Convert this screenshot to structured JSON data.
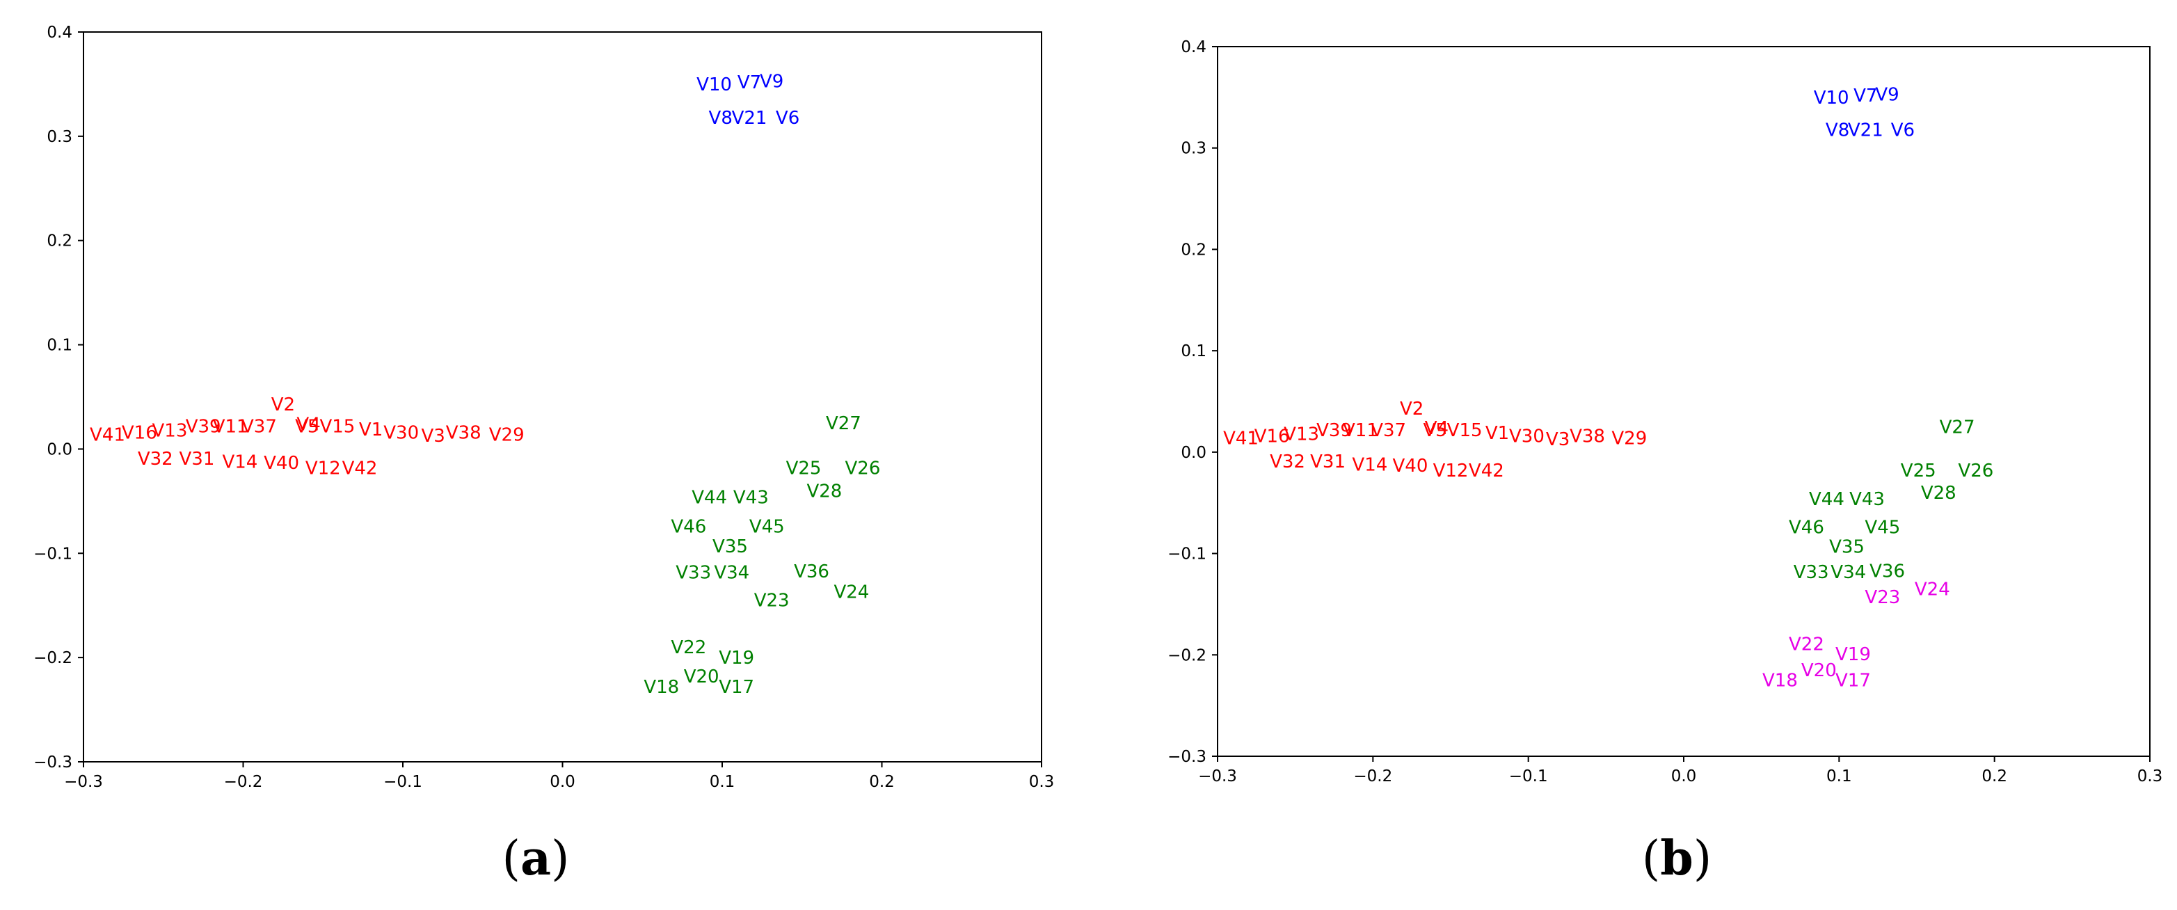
{
  "colors": {
    "red": "#ff0000",
    "blue": "#0000ff",
    "green": "#008000",
    "magenta": "#e600e6"
  },
  "chart_data": [
    {
      "type": "scatter",
      "title": "",
      "xlabel": "",
      "ylabel": "",
      "xlim": [
        -0.3,
        0.3
      ],
      "ylim": [
        -0.3,
        0.4
      ],
      "grid": false,
      "caption_letter": "a",
      "x_ticks": [
        "−0.3",
        "−0.2",
        "−0.1",
        "0.0",
        "0.1",
        "0.2",
        "0.3"
      ],
      "y_ticks": [
        "−0.3",
        "−0.2",
        "−0.1",
        "0.0",
        "0.1",
        "0.2",
        "0.3",
        "0.4"
      ],
      "points": [
        {
          "label": "V10",
          "x": 0.095,
          "y": 0.35,
          "color": "blue"
        },
        {
          "label": "V7",
          "x": 0.117,
          "y": 0.352,
          "color": "blue"
        },
        {
          "label": "V9",
          "x": 0.131,
          "y": 0.353,
          "color": "blue"
        },
        {
          "label": "V8",
          "x": 0.099,
          "y": 0.318,
          "color": "blue"
        },
        {
          "label": "V21",
          "x": 0.117,
          "y": 0.318,
          "color": "blue"
        },
        {
          "label": "V6",
          "x": 0.141,
          "y": 0.318,
          "color": "blue"
        },
        {
          "label": "V2",
          "x": -0.175,
          "y": 0.043,
          "color": "red"
        },
        {
          "label": "V41",
          "x": -0.285,
          "y": 0.014,
          "color": "red"
        },
        {
          "label": "V16",
          "x": -0.265,
          "y": 0.016,
          "color": "red"
        },
        {
          "label": "V13",
          "x": -0.246,
          "y": 0.018,
          "color": "red"
        },
        {
          "label": "V39",
          "x": -0.225,
          "y": 0.022,
          "color": "red"
        },
        {
          "label": "V11",
          "x": -0.208,
          "y": 0.022,
          "color": "red"
        },
        {
          "label": "V37",
          "x": -0.19,
          "y": 0.022,
          "color": "red"
        },
        {
          "label": "V5",
          "x": -0.16,
          "y": 0.022,
          "color": "red"
        },
        {
          "label": "V4",
          "x": -0.159,
          "y": 0.024,
          "color": "red"
        },
        {
          "label": "V15",
          "x": -0.141,
          "y": 0.022,
          "color": "red"
        },
        {
          "label": "V1",
          "x": -0.12,
          "y": 0.019,
          "color": "red"
        },
        {
          "label": "V30",
          "x": -0.101,
          "y": 0.016,
          "color": "red"
        },
        {
          "label": "V3",
          "x": -0.081,
          "y": 0.013,
          "color": "red"
        },
        {
          "label": "V38",
          "x": -0.062,
          "y": 0.016,
          "color": "red"
        },
        {
          "label": "V29",
          "x": -0.035,
          "y": 0.014,
          "color": "red"
        },
        {
          "label": "V32",
          "x": -0.255,
          "y": -0.009,
          "color": "red"
        },
        {
          "label": "V31",
          "x": -0.229,
          "y": -0.009,
          "color": "red"
        },
        {
          "label": "V14",
          "x": -0.202,
          "y": -0.012,
          "color": "red"
        },
        {
          "label": "V40",
          "x": -0.176,
          "y": -0.013,
          "color": "red"
        },
        {
          "label": "V12",
          "x": -0.15,
          "y": -0.018,
          "color": "red"
        },
        {
          "label": "V42",
          "x": -0.127,
          "y": -0.018,
          "color": "red"
        },
        {
          "label": "V27",
          "x": 0.176,
          "y": 0.025,
          "color": "green"
        },
        {
          "label": "V25",
          "x": 0.151,
          "y": -0.018,
          "color": "green"
        },
        {
          "label": "V26",
          "x": 0.188,
          "y": -0.018,
          "color": "green"
        },
        {
          "label": "V28",
          "x": 0.164,
          "y": -0.04,
          "color": "green"
        },
        {
          "label": "V44",
          "x": 0.092,
          "y": -0.046,
          "color": "green"
        },
        {
          "label": "V43",
          "x": 0.118,
          "y": -0.046,
          "color": "green"
        },
        {
          "label": "V46",
          "x": 0.079,
          "y": -0.074,
          "color": "green"
        },
        {
          "label": "V45",
          "x": 0.128,
          "y": -0.074,
          "color": "green"
        },
        {
          "label": "V35",
          "x": 0.105,
          "y": -0.093,
          "color": "green"
        },
        {
          "label": "V33",
          "x": 0.082,
          "y": -0.118,
          "color": "green"
        },
        {
          "label": "V34",
          "x": 0.106,
          "y": -0.118,
          "color": "green"
        },
        {
          "label": "V36",
          "x": 0.156,
          "y": -0.117,
          "color": "green"
        },
        {
          "label": "V24",
          "x": 0.181,
          "y": -0.137,
          "color": "green"
        },
        {
          "label": "V23",
          "x": 0.131,
          "y": -0.145,
          "color": "green"
        },
        {
          "label": "V22",
          "x": 0.079,
          "y": -0.19,
          "color": "green"
        },
        {
          "label": "V19",
          "x": 0.109,
          "y": -0.2,
          "color": "green"
        },
        {
          "label": "V20",
          "x": 0.087,
          "y": -0.218,
          "color": "green"
        },
        {
          "label": "V18",
          "x": 0.062,
          "y": -0.228,
          "color": "green"
        },
        {
          "label": "V17",
          "x": 0.109,
          "y": -0.228,
          "color": "green"
        }
      ]
    },
    {
      "type": "scatter",
      "title": "",
      "xlabel": "",
      "ylabel": "",
      "xlim": [
        -0.3,
        0.3
      ],
      "ylim": [
        -0.3,
        0.4
      ],
      "grid": false,
      "caption_letter": "b",
      "x_ticks": [
        "−0.3",
        "−0.2",
        "−0.1",
        "0.0",
        "0.1",
        "0.2",
        "0.3"
      ],
      "y_ticks": [
        "−0.3",
        "−0.2",
        "−0.1",
        "0.0",
        "0.1",
        "0.2",
        "0.3",
        "0.4"
      ],
      "points": [
        {
          "label": "V10",
          "x": 0.095,
          "y": 0.35,
          "color": "blue"
        },
        {
          "label": "V7",
          "x": 0.117,
          "y": 0.352,
          "color": "blue"
        },
        {
          "label": "V9",
          "x": 0.131,
          "y": 0.353,
          "color": "blue"
        },
        {
          "label": "V8",
          "x": 0.099,
          "y": 0.318,
          "color": "blue"
        },
        {
          "label": "V21",
          "x": 0.117,
          "y": 0.318,
          "color": "blue"
        },
        {
          "label": "V6",
          "x": 0.141,
          "y": 0.318,
          "color": "blue"
        },
        {
          "label": "V2",
          "x": -0.175,
          "y": 0.043,
          "color": "red"
        },
        {
          "label": "V41",
          "x": -0.285,
          "y": 0.014,
          "color": "red"
        },
        {
          "label": "V16",
          "x": -0.265,
          "y": 0.016,
          "color": "red"
        },
        {
          "label": "V13",
          "x": -0.246,
          "y": 0.018,
          "color": "red"
        },
        {
          "label": "V39",
          "x": -0.225,
          "y": 0.022,
          "color": "red"
        },
        {
          "label": "V11",
          "x": -0.208,
          "y": 0.022,
          "color": "red"
        },
        {
          "label": "V37",
          "x": -0.19,
          "y": 0.022,
          "color": "red"
        },
        {
          "label": "V5",
          "x": -0.16,
          "y": 0.022,
          "color": "red"
        },
        {
          "label": "V4",
          "x": -0.159,
          "y": 0.024,
          "color": "red"
        },
        {
          "label": "V15",
          "x": -0.141,
          "y": 0.022,
          "color": "red"
        },
        {
          "label": "V1",
          "x": -0.12,
          "y": 0.019,
          "color": "red"
        },
        {
          "label": "V30",
          "x": -0.101,
          "y": 0.016,
          "color": "red"
        },
        {
          "label": "V3",
          "x": -0.081,
          "y": 0.013,
          "color": "red"
        },
        {
          "label": "V38",
          "x": -0.062,
          "y": 0.016,
          "color": "red"
        },
        {
          "label": "V29",
          "x": -0.035,
          "y": 0.014,
          "color": "red"
        },
        {
          "label": "V32",
          "x": -0.255,
          "y": -0.009,
          "color": "red"
        },
        {
          "label": "V31",
          "x": -0.229,
          "y": -0.009,
          "color": "red"
        },
        {
          "label": "V14",
          "x": -0.202,
          "y": -0.012,
          "color": "red"
        },
        {
          "label": "V40",
          "x": -0.176,
          "y": -0.013,
          "color": "red"
        },
        {
          "label": "V12",
          "x": -0.15,
          "y": -0.018,
          "color": "red"
        },
        {
          "label": "V42",
          "x": -0.127,
          "y": -0.018,
          "color": "red"
        },
        {
          "label": "V27",
          "x": 0.176,
          "y": 0.025,
          "color": "green"
        },
        {
          "label": "V25",
          "x": 0.151,
          "y": -0.018,
          "color": "green"
        },
        {
          "label": "V26",
          "x": 0.188,
          "y": -0.018,
          "color": "green"
        },
        {
          "label": "V28",
          "x": 0.164,
          "y": -0.04,
          "color": "green"
        },
        {
          "label": "V44",
          "x": 0.092,
          "y": -0.046,
          "color": "green"
        },
        {
          "label": "V43",
          "x": 0.118,
          "y": -0.046,
          "color": "green"
        },
        {
          "label": "V46",
          "x": 0.079,
          "y": -0.074,
          "color": "green"
        },
        {
          "label": "V45",
          "x": 0.128,
          "y": -0.074,
          "color": "green"
        },
        {
          "label": "V35",
          "x": 0.105,
          "y": -0.093,
          "color": "green"
        },
        {
          "label": "V33",
          "x": 0.082,
          "y": -0.118,
          "color": "green"
        },
        {
          "label": "V34",
          "x": 0.106,
          "y": -0.118,
          "color": "green"
        },
        {
          "label": "V36",
          "x": 0.131,
          "y": -0.117,
          "color": "green"
        },
        {
          "label": "V24",
          "x": 0.16,
          "y": -0.135,
          "color": "magenta"
        },
        {
          "label": "V23",
          "x": 0.128,
          "y": -0.143,
          "color": "magenta"
        },
        {
          "label": "V22",
          "x": 0.079,
          "y": -0.189,
          "color": "magenta"
        },
        {
          "label": "V19",
          "x": 0.109,
          "y": -0.199,
          "color": "magenta"
        },
        {
          "label": "V20",
          "x": 0.087,
          "y": -0.215,
          "color": "magenta"
        },
        {
          "label": "V18",
          "x": 0.062,
          "y": -0.225,
          "color": "magenta"
        },
        {
          "label": "V17",
          "x": 0.109,
          "y": -0.225,
          "color": "magenta"
        }
      ]
    }
  ]
}
